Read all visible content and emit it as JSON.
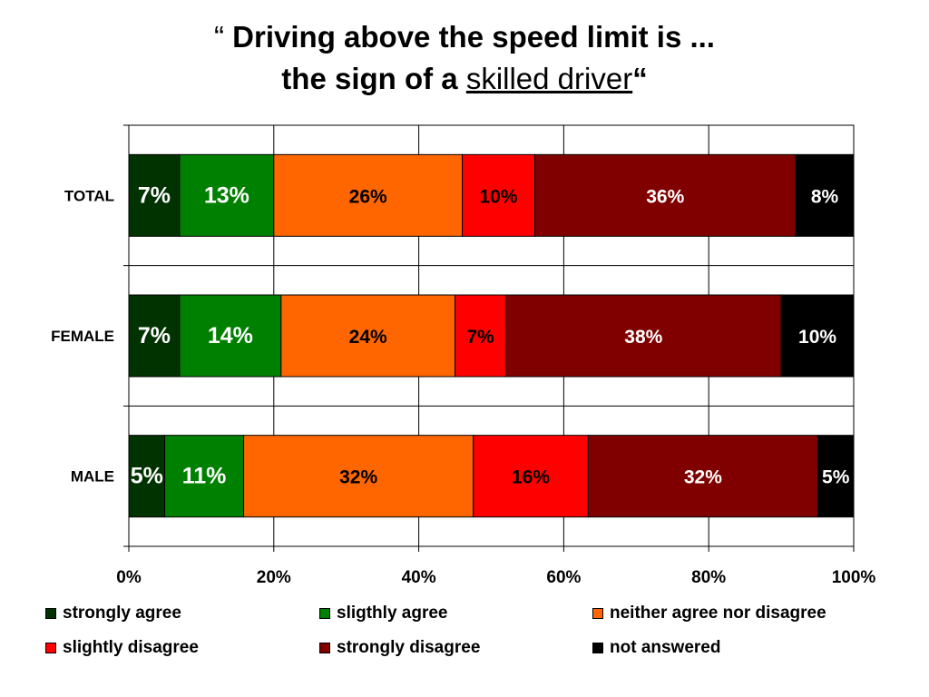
{
  "title": {
    "open_quote": "“",
    "line1": "Driving above the speed limit is ...",
    "line2_prefix": "the sign of a",
    "line2_underlined": "skilled driver",
    "close_quote": "“"
  },
  "chart_data": {
    "type": "bar",
    "orientation": "horizontal",
    "stacked": "percent",
    "categories": [
      "TOTAL",
      "FEMALE",
      "MALE"
    ],
    "series": [
      {
        "name": "strongly agree",
        "color": "#003300",
        "values": [
          7,
          7,
          5
        ],
        "labels": [
          "7%",
          "7%",
          "5%"
        ]
      },
      {
        "name": "sligthly agree",
        "color": "#008000",
        "values": [
          13,
          14,
          11
        ],
        "labels": [
          "13%",
          "14%",
          "11%"
        ]
      },
      {
        "name": "neither agree nor disagree",
        "color": "#FF6600",
        "values": [
          26,
          24,
          32
        ],
        "labels": [
          "26%",
          "24%",
          "32%"
        ]
      },
      {
        "name": "slightly disagree",
        "color": "#FF0000",
        "values": [
          10,
          7,
          16
        ],
        "labels": [
          "10%",
          "7%",
          "16%"
        ]
      },
      {
        "name": "strongly disagree",
        "color": "#800000",
        "values": [
          36,
          38,
          32
        ],
        "labels": [
          "36%",
          "38%",
          "32%"
        ]
      },
      {
        "name": "not answered",
        "color": "#000000",
        "values": [
          8,
          10,
          5
        ],
        "labels": [
          "8%",
          "10%",
          "5%"
        ]
      }
    ],
    "xlim": [
      0,
      100
    ],
    "x_ticks": [
      "0%",
      "20%",
      "40%",
      "60%",
      "80%",
      "100%"
    ],
    "grid": true,
    "legend_position": "bottom"
  }
}
